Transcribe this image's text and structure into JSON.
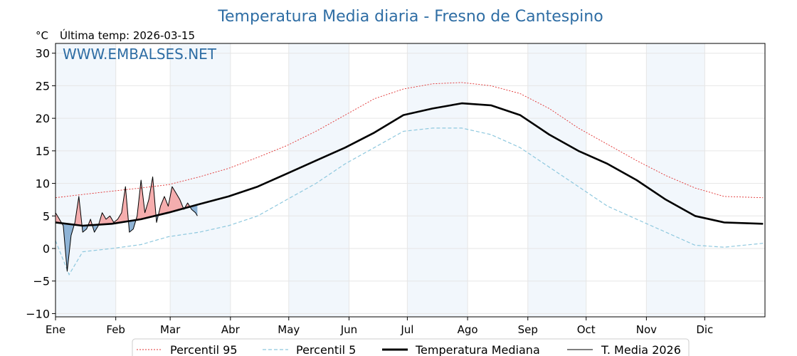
{
  "chart_data": {
    "type": "line",
    "title": "Temperatura Media diaria - Fresno de Cantespino",
    "unit_label": "°C",
    "subtitle": "Última temp: 2026-03-15",
    "watermark": "WWW.EMBALSES.NET",
    "x_ticks": [
      "Ene",
      "Feb",
      "Mar",
      "Abr",
      "May",
      "Jun",
      "Jul",
      "Ago",
      "Sep",
      "Oct",
      "Nov",
      "Dic"
    ],
    "y_ticks": [
      "−10",
      "−5",
      "0",
      "5",
      "10",
      "15",
      "20",
      "25",
      "30"
    ],
    "ylim": [
      -10.5,
      31.5
    ],
    "grid": true,
    "legend_position": "bottom-center",
    "colors": {
      "title": "#2e6da4",
      "p95": "#e03030",
      "p5": "#8ec8de",
      "median": "#000000",
      "current": "#000000",
      "above_fill": "#f4a0a0",
      "below_fill": "#7ba7cf",
      "band": "#dbe8f5"
    },
    "series": [
      {
        "name": "Percentil 95",
        "key": "p95",
        "x": [
          1,
          15,
          30,
          45,
          59,
          75,
          90,
          105,
          120,
          135,
          150,
          165,
          180,
          195,
          210,
          225,
          240,
          255,
          270,
          285,
          300,
          315,
          330,
          345,
          365
        ],
        "values": [
          7.8,
          8.3,
          8.8,
          9.3,
          9.8,
          11.0,
          12.3,
          14.0,
          15.8,
          18.0,
          20.5,
          23.0,
          24.5,
          25.3,
          25.5,
          25.0,
          23.8,
          21.5,
          18.5,
          16.0,
          13.5,
          11.2,
          9.3,
          8.0,
          7.8
        ]
      },
      {
        "name": "Percentil 5",
        "key": "p5",
        "x": [
          1,
          8,
          15,
          30,
          45,
          59,
          75,
          90,
          105,
          120,
          135,
          150,
          165,
          180,
          195,
          210,
          225,
          240,
          255,
          270,
          285,
          300,
          315,
          330,
          345,
          365
        ],
        "values": [
          1.2,
          -4.0,
          -0.5,
          0.0,
          0.6,
          1.8,
          2.5,
          3.5,
          5.0,
          7.5,
          10.0,
          13.0,
          15.5,
          18.0,
          18.5,
          18.5,
          17.5,
          15.5,
          12.5,
          9.5,
          6.5,
          4.5,
          2.5,
          0.5,
          0.2,
          0.8
        ]
      },
      {
        "name": "Temperatura Mediana",
        "key": "median",
        "x": [
          1,
          15,
          30,
          45,
          59,
          75,
          90,
          105,
          120,
          135,
          150,
          165,
          180,
          195,
          210,
          225,
          240,
          255,
          270,
          285,
          300,
          315,
          330,
          345,
          365
        ],
        "values": [
          4.0,
          3.5,
          3.8,
          4.5,
          5.5,
          6.8,
          8.0,
          9.5,
          11.5,
          13.5,
          15.5,
          17.8,
          20.5,
          21.5,
          22.3,
          22.0,
          20.5,
          17.5,
          15.0,
          13.0,
          10.5,
          7.5,
          5.0,
          4.0,
          3.8
        ]
      },
      {
        "name": "T. Media 2026",
        "key": "current",
        "x": [
          1,
          3,
          5,
          7,
          9,
          11,
          13,
          15,
          17,
          19,
          21,
          23,
          25,
          27,
          29,
          31,
          33,
          35,
          37,
          39,
          41,
          43,
          45,
          47,
          49,
          51,
          53,
          55,
          57,
          59,
          61,
          63,
          65,
          67,
          69,
          71,
          73,
          74
        ],
        "values": [
          5.5,
          4.5,
          3.5,
          -3.5,
          2.0,
          4.0,
          8.0,
          2.5,
          3.0,
          4.5,
          2.5,
          3.5,
          5.5,
          4.5,
          5.0,
          4.0,
          4.5,
          5.5,
          9.5,
          2.5,
          3.0,
          5.0,
          10.5,
          5.5,
          7.5,
          11.0,
          4.0,
          6.5,
          8.0,
          6.5,
          9.5,
          8.5,
          7.5,
          6.0,
          7.0,
          6.0,
          5.5,
          5.0
        ]
      }
    ]
  }
}
